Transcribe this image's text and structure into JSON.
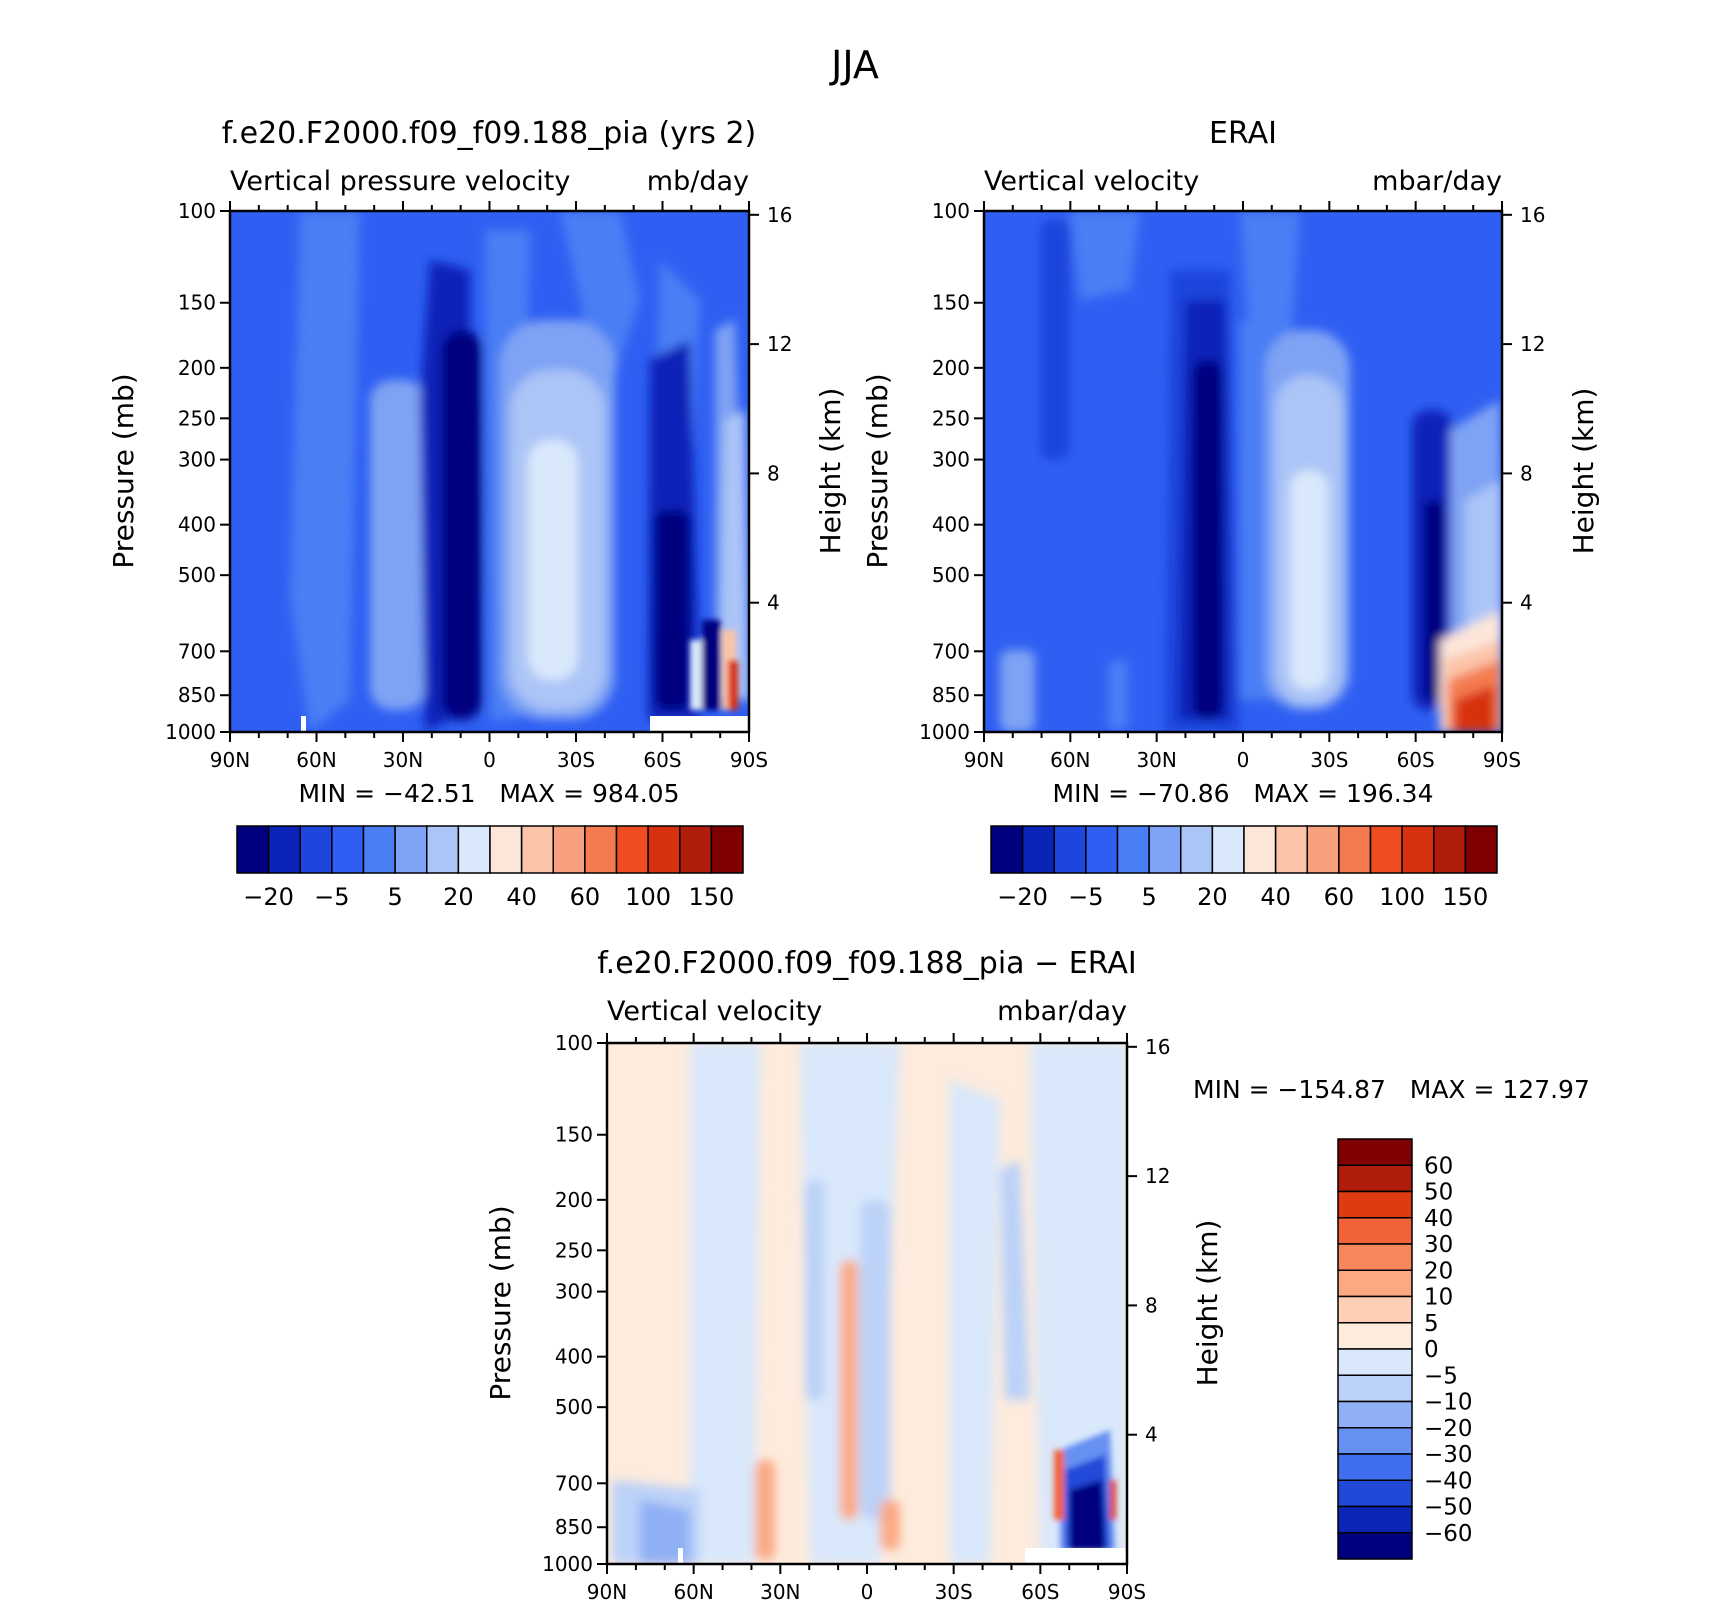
{
  "figure": {
    "title": "JJA"
  },
  "panels": [
    {
      "id": "model",
      "header": "f.e20.F2000.f09_f09.188_pia (yrs 2)",
      "left_label": "Vertical pressure velocity",
      "right_label": "mb/day",
      "ylabel": "Pressure (mb)",
      "ylabel_right": "Height (km)",
      "stats": "MIN = −42.51   MAX = 984.05"
    },
    {
      "id": "obs",
      "header": "ERAI",
      "left_label": "Vertical velocity",
      "right_label": "mbar/day",
      "ylabel": "Pressure (mb)",
      "ylabel_right": "Height (km)",
      "stats": "MIN = −70.86   MAX = 196.34"
    },
    {
      "id": "diff",
      "header": "f.e20.F2000.f09_f09.188_pia − ERAI",
      "left_label": "Vertical velocity",
      "right_label": "mbar/day",
      "ylabel": "Pressure (mb)",
      "ylabel_right": "Height (km)",
      "stats": "MIN = −154.87   MAX = 127.97"
    }
  ],
  "chart_data": [
    {
      "type": "heatmap",
      "title": "f.e20.F2000.f09_f09.188_pia (yrs 2)",
      "variable": "Vertical pressure velocity",
      "units": "mb/day",
      "x_ticks": [
        "90N",
        "60N",
        "30N",
        "0",
        "30S",
        "60S",
        "90S"
      ],
      "x_tick_values": [
        90,
        60,
        30,
        0,
        -30,
        -60,
        -90
      ],
      "y_ticks": [
        100,
        150,
        200,
        250,
        300,
        400,
        500,
        700,
        850,
        1000
      ],
      "ylim": [
        1000,
        100
      ],
      "yscale": "log",
      "right_axis_ticks": [
        4,
        8,
        12,
        16
      ],
      "colorbar_labels": [
        "−20",
        "−5",
        "5",
        "20",
        "40",
        "60",
        "100",
        "150"
      ],
      "colorbar_colors": [
        "#00007f",
        "#0a24b8",
        "#1e45dc",
        "#2f5ff2",
        "#4a7ef5",
        "#7ea3f4",
        "#acc5f7",
        "#d9e8fb",
        "#fde6d9",
        "#fbc4a9",
        "#f7a07d",
        "#f47b4f",
        "#f04c22",
        "#d8310f",
        "#b01d0d",
        "#7f0000"
      ],
      "min": -42.51,
      "max": 984.05
    },
    {
      "type": "heatmap",
      "title": "ERAI",
      "variable": "Vertical velocity",
      "units": "mbar/day",
      "x_ticks": [
        "90N",
        "60N",
        "30N",
        "0",
        "30S",
        "60S",
        "90S"
      ],
      "x_tick_values": [
        90,
        60,
        30,
        0,
        -30,
        -60,
        -90
      ],
      "y_ticks": [
        100,
        150,
        200,
        250,
        300,
        400,
        500,
        700,
        850,
        1000
      ],
      "ylim": [
        1000,
        100
      ],
      "yscale": "log",
      "right_axis_ticks": [
        4,
        8,
        12,
        16
      ],
      "colorbar_labels": [
        "−20",
        "−5",
        "5",
        "20",
        "40",
        "60",
        "100",
        "150"
      ],
      "colorbar_colors": [
        "#00007f",
        "#0a24b8",
        "#1e45dc",
        "#2f5ff2",
        "#4a7ef5",
        "#7ea3f4",
        "#acc5f7",
        "#d9e8fb",
        "#fde6d9",
        "#fbc4a9",
        "#f7a07d",
        "#f47b4f",
        "#f04c22",
        "#d8310f",
        "#b01d0d",
        "#7f0000"
      ],
      "min": -70.86,
      "max": 196.34
    },
    {
      "type": "heatmap",
      "title": "f.e20.F2000.f09_f09.188_pia − ERAI",
      "variable": "Vertical velocity",
      "units": "mbar/day",
      "x_ticks": [
        "90N",
        "60N",
        "30N",
        "0",
        "30S",
        "60S",
        "90S"
      ],
      "x_tick_values": [
        90,
        60,
        30,
        0,
        -30,
        -60,
        -90
      ],
      "y_ticks": [
        100,
        150,
        200,
        250,
        300,
        400,
        500,
        700,
        850,
        1000
      ],
      "ylim": [
        1000,
        100
      ],
      "yscale": "log",
      "right_axis_ticks": [
        4,
        8,
        12,
        16
      ],
      "colorbar_labels": [
        "60",
        "50",
        "40",
        "30",
        "20",
        "10",
        "5",
        "0",
        "−5",
        "−10",
        "−20",
        "−30",
        "−40",
        "−50",
        "−60"
      ],
      "colorbar_colors": [
        "#7f0000",
        "#b01d0d",
        "#e03a10",
        "#f26238",
        "#f8865b",
        "#fba983",
        "#fdd0b6",
        "#fdebdd",
        "#d9e8fb",
        "#bcd2f8",
        "#8fb0f5",
        "#6690f2",
        "#3f6fee",
        "#2049d8",
        "#0b25b5",
        "#00007f"
      ],
      "min": -154.87,
      "max": 127.97
    }
  ]
}
